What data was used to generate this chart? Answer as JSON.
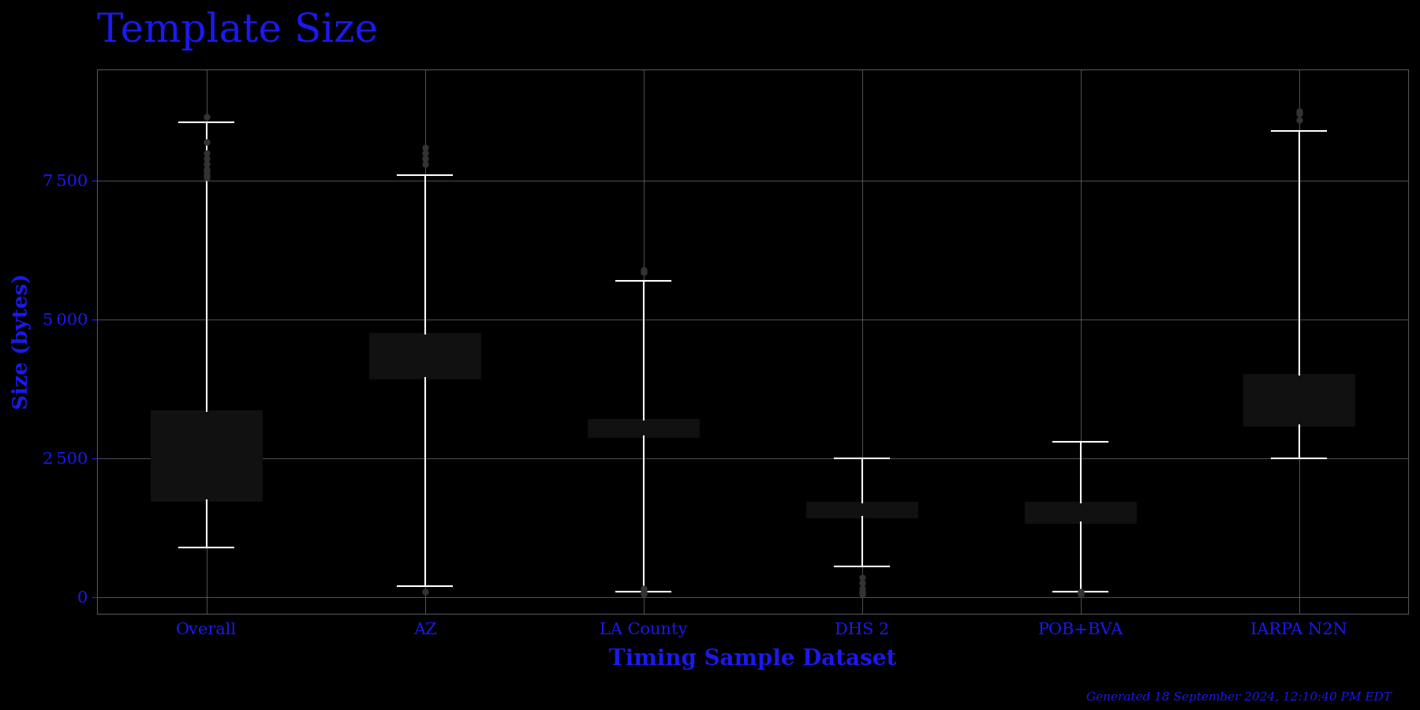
{
  "title": "Template Size",
  "xlabel": "Timing Sample Dataset",
  "ylabel": "Size (bytes)",
  "background_color": "#000000",
  "text_color": "#1a1aee",
  "box_facecolor": "#ffffff",
  "box_edgecolor": "#111111",
  "median_color": "#111111",
  "whisker_color": "#ffffff",
  "cap_color": "#ffffff",
  "flier_color": "#333333",
  "grid_color": "#888888",
  "categories": [
    "Overall",
    "AZ",
    "LA County",
    "DHS 2",
    "POB+BVA",
    "IARPA N2N"
  ],
  "yticks": [
    0,
    2500,
    5000,
    7500
  ],
  "ylim": [
    -300,
    9500
  ],
  "footnote": "Generated 18 September 2024, 12:10:40 PM EDT",
  "box_stats": [
    {
      "med": 2550,
      "q1": 1750,
      "q3": 3350,
      "whislo": 900,
      "whishi": 8550,
      "fliers": [
        8650,
        8200,
        8000,
        7900,
        7800,
        7700,
        7650,
        7600,
        7550
      ]
    },
    {
      "med": 4250,
      "q1": 3950,
      "q3": 4750,
      "whislo": 200,
      "whishi": 7600,
      "fliers": [
        8100,
        8000,
        7900,
        7800,
        100
      ]
    },
    {
      "med": 3000,
      "q1": 2900,
      "q3": 3200,
      "whislo": 100,
      "whishi": 5700,
      "fliers": [
        5900,
        5850,
        150,
        100,
        50
      ]
    },
    {
      "med": 1550,
      "q1": 1450,
      "q3": 1700,
      "whislo": 550,
      "whishi": 2500,
      "fliers": [
        350,
        250,
        150,
        100,
        50
      ]
    },
    {
      "med": 1500,
      "q1": 1350,
      "q3": 1700,
      "whislo": 100,
      "whishi": 2800,
      "fliers": [
        50,
        75,
        100
      ]
    },
    {
      "med": 3400,
      "q1": 3100,
      "q3": 4000,
      "whislo": 2500,
      "whishi": 8400,
      "fliers": [
        8600,
        8700,
        8750
      ]
    }
  ]
}
